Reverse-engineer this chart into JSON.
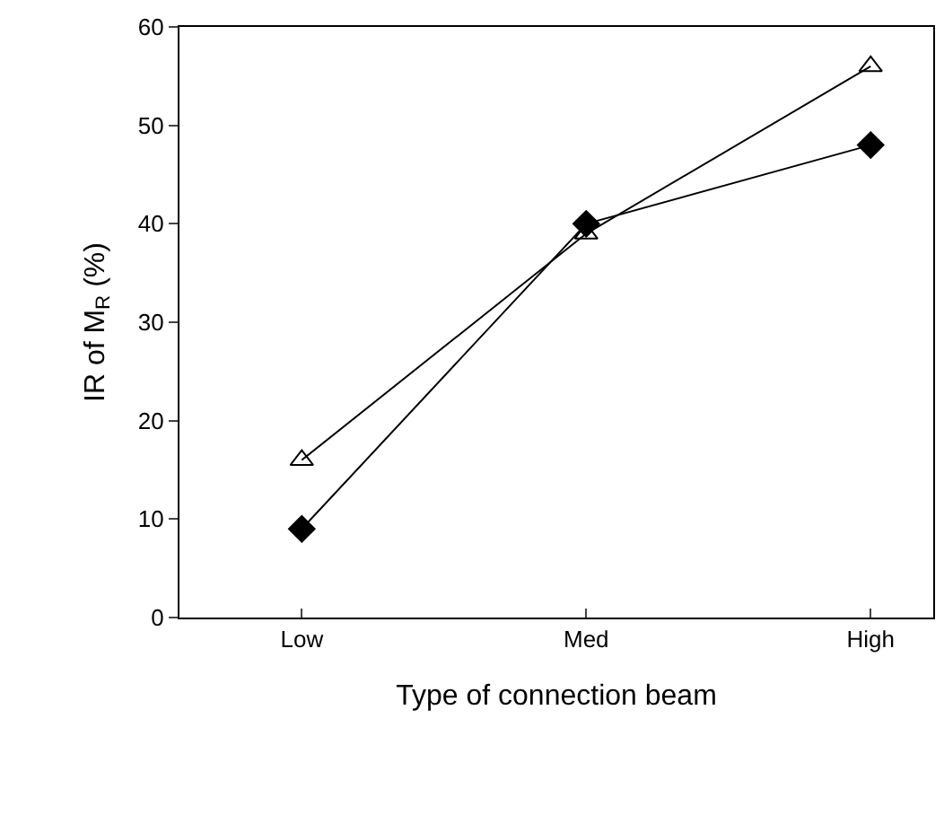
{
  "chart_data": {
    "type": "line",
    "xlabel": "Type of connection beam",
    "ylabel": "IR of M$_{R}$ (%)",
    "categories": [
      "Low",
      "Med",
      "High"
    ],
    "series": [
      {
        "color": "#000000",
        "marker": "triangle",
        "values": [
          16,
          39,
          56
        ]
      },
      {
        "color": "#000000",
        "marker": "diamond",
        "values": [
          9,
          40,
          48
        ]
      }
    ],
    "ylim": [
      0,
      60
    ],
    "yticks": [
      0,
      10,
      20,
      30,
      40,
      50,
      60
    ],
    "line_style": "solid"
  }
}
